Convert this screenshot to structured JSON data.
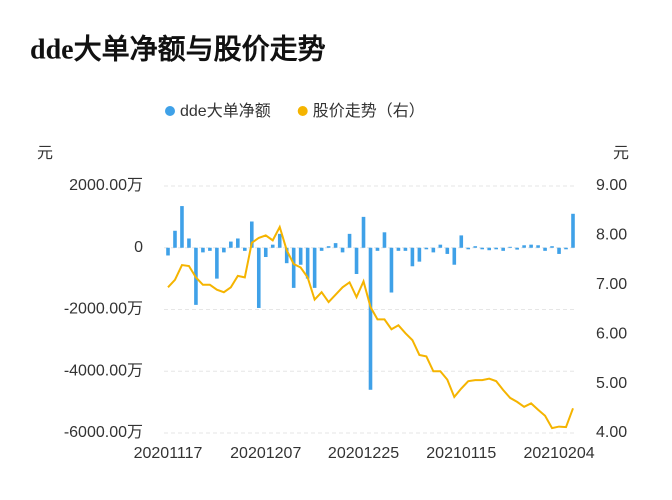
{
  "chart_data": {
    "type": "bar-line",
    "title": "dde大单净额与股价走势",
    "y_unit": "元",
    "y2_unit": "元",
    "categories": [
      "20201117",
      null,
      null,
      null,
      null,
      null,
      null,
      null,
      null,
      null,
      null,
      null,
      null,
      null,
      "20201207",
      null,
      null,
      null,
      null,
      null,
      null,
      null,
      null,
      null,
      null,
      null,
      null,
      null,
      "20201225",
      null,
      null,
      null,
      null,
      null,
      null,
      null,
      null,
      null,
      null,
      null,
      null,
      null,
      "20210115",
      null,
      null,
      null,
      null,
      null,
      null,
      null,
      null,
      null,
      null,
      null,
      null,
      null,
      "20210204",
      null,
      null
    ],
    "series": [
      {
        "name": "dde大单净额",
        "color": "#3fa1e8",
        "type": "bar",
        "values": [
          -250,
          550,
          1350,
          300,
          -1850,
          -150,
          -100,
          -1000,
          -150,
          200,
          300,
          -100,
          850,
          -1950,
          -300,
          100,
          450,
          -500,
          -1300,
          -550,
          -1000,
          -1300,
          -100,
          50,
          150,
          -150,
          450,
          -850,
          1000,
          -4600,
          -100,
          500,
          -1450,
          -100,
          -100,
          -600,
          -450,
          -50,
          -150,
          100,
          -200,
          -550,
          400,
          -50,
          50,
          -50,
          -80,
          -50,
          -100,
          30,
          -60,
          80,
          100,
          80,
          -100,
          50,
          -200,
          -50,
          1100
        ]
      },
      {
        "name": "股价走势（右）",
        "color": "#f5b400",
        "type": "line",
        "axis": "y2",
        "values": [
          6.95,
          7.1,
          7.4,
          7.38,
          7.15,
          7.0,
          7.0,
          6.9,
          6.85,
          6.95,
          7.18,
          7.15,
          7.85,
          7.95,
          8.0,
          7.9,
          8.17,
          7.7,
          7.42,
          7.35,
          7.15,
          6.7,
          6.85,
          6.65,
          6.8,
          6.95,
          7.05,
          6.75,
          7.07,
          6.55,
          6.3,
          6.3,
          6.1,
          6.18,
          6.02,
          5.88,
          5.58,
          5.55,
          5.25,
          5.25,
          5.08,
          4.73,
          4.9,
          5.05,
          5.07,
          5.07,
          5.1,
          5.05,
          4.87,
          4.71,
          4.63,
          4.53,
          4.6,
          4.47,
          4.35,
          4.1,
          4.13,
          4.12,
          4.5
        ]
      }
    ],
    "ylim": [
      -6000,
      2000
    ],
    "yticks": [
      {
        "value": 2000,
        "label": "2000.00万"
      },
      0,
      {
        "value": -2000,
        "label": "-2000.00万"
      },
      {
        "value": -4000,
        "label": "-4000.00万"
      },
      {
        "value": -6000,
        "label": "-6000.00万"
      }
    ],
    "y2lim": [
      4,
      9
    ],
    "y2ticks": [
      {
        "value": 9,
        "label": "9.00"
      },
      {
        "value": 8,
        "label": "8.00"
      },
      {
        "value": 7,
        "label": "7.00"
      },
      {
        "value": 6,
        "label": "6.00"
      },
      {
        "value": 5,
        "label": "5.00"
      },
      {
        "value": 4,
        "label": "4.00"
      }
    ],
    "grid": true
  }
}
